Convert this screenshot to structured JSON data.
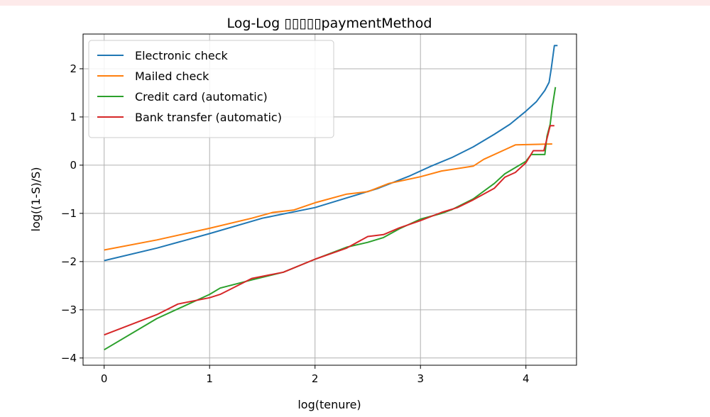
{
  "chart_data": {
    "type": "line",
    "title": "Log-Log ▯▯▯▯▯paymentMethod",
    "xlabel": "log(tenure)",
    "ylabel": "log((1-S)/S)",
    "xlim": [
      -0.2,
      4.48
    ],
    "ylim": [
      -4.15,
      2.72
    ],
    "xticks": [
      0,
      1,
      2,
      3,
      4
    ],
    "yticks": [
      -4,
      -3,
      -2,
      -1,
      0,
      1,
      2
    ],
    "grid": true,
    "legend_position": "top-left",
    "series": [
      {
        "name": "Electronic check",
        "color": "#1f77b4",
        "points": [
          [
            0,
            -1.98
          ],
          [
            0.5,
            -1.72
          ],
          [
            1.0,
            -1.42
          ],
          [
            1.5,
            -1.1
          ],
          [
            2.0,
            -0.88
          ],
          [
            2.3,
            -0.68
          ],
          [
            2.6,
            -0.48
          ],
          [
            2.9,
            -0.22
          ],
          [
            3.1,
            -0.02
          ],
          [
            3.3,
            0.16
          ],
          [
            3.5,
            0.38
          ],
          [
            3.7,
            0.64
          ],
          [
            3.85,
            0.85
          ],
          [
            4.0,
            1.12
          ],
          [
            4.1,
            1.32
          ],
          [
            4.18,
            1.55
          ],
          [
            4.22,
            1.72
          ],
          [
            4.24,
            2.0
          ],
          [
            4.27,
            2.48
          ],
          [
            4.3,
            2.48
          ]
        ]
      },
      {
        "name": "Mailed check",
        "color": "#ff7f0e",
        "points": [
          [
            0,
            -1.76
          ],
          [
            0.5,
            -1.55
          ],
          [
            1.0,
            -1.31
          ],
          [
            1.4,
            -1.1
          ],
          [
            1.6,
            -0.98
          ],
          [
            1.8,
            -0.93
          ],
          [
            2.0,
            -0.78
          ],
          [
            2.3,
            -0.6
          ],
          [
            2.5,
            -0.55
          ],
          [
            2.7,
            -0.38
          ],
          [
            3.0,
            -0.24
          ],
          [
            3.2,
            -0.12
          ],
          [
            3.5,
            -0.02
          ],
          [
            3.6,
            0.12
          ],
          [
            3.8,
            0.32
          ],
          [
            3.9,
            0.42
          ],
          [
            4.25,
            0.44
          ]
        ]
      },
      {
        "name": "Credit card (automatic)",
        "color": "#2ca02c",
        "points": [
          [
            0,
            -3.83
          ],
          [
            0.5,
            -3.18
          ],
          [
            1.0,
            -2.68
          ],
          [
            1.1,
            -2.55
          ],
          [
            1.4,
            -2.38
          ],
          [
            1.7,
            -2.22
          ],
          [
            2.0,
            -1.95
          ],
          [
            2.3,
            -1.7
          ],
          [
            2.5,
            -1.6
          ],
          [
            2.65,
            -1.5
          ],
          [
            2.8,
            -1.32
          ],
          [
            3.0,
            -1.12
          ],
          [
            3.2,
            -1.0
          ],
          [
            3.3,
            -0.92
          ],
          [
            3.5,
            -0.7
          ],
          [
            3.7,
            -0.38
          ],
          [
            3.8,
            -0.18
          ],
          [
            4.0,
            0.08
          ],
          [
            4.05,
            0.22
          ],
          [
            4.18,
            0.22
          ],
          [
            4.2,
            0.6
          ],
          [
            4.23,
            0.85
          ],
          [
            4.25,
            1.2
          ],
          [
            4.28,
            1.62
          ]
        ]
      },
      {
        "name": "Bank transfer (automatic)",
        "color": "#d62728",
        "points": [
          [
            0,
            -3.52
          ],
          [
            0.5,
            -3.1
          ],
          [
            0.7,
            -2.88
          ],
          [
            1.0,
            -2.75
          ],
          [
            1.1,
            -2.68
          ],
          [
            1.4,
            -2.35
          ],
          [
            1.7,
            -2.22
          ],
          [
            2.0,
            -1.95
          ],
          [
            2.3,
            -1.72
          ],
          [
            2.5,
            -1.48
          ],
          [
            2.65,
            -1.44
          ],
          [
            2.8,
            -1.3
          ],
          [
            3.0,
            -1.15
          ],
          [
            3.2,
            -0.98
          ],
          [
            3.35,
            -0.88
          ],
          [
            3.5,
            -0.72
          ],
          [
            3.7,
            -0.48
          ],
          [
            3.8,
            -0.25
          ],
          [
            3.9,
            -0.15
          ],
          [
            4.0,
            0.05
          ],
          [
            4.07,
            0.3
          ],
          [
            4.17,
            0.3
          ],
          [
            4.2,
            0.55
          ],
          [
            4.23,
            0.82
          ],
          [
            4.27,
            0.82
          ]
        ]
      }
    ]
  }
}
